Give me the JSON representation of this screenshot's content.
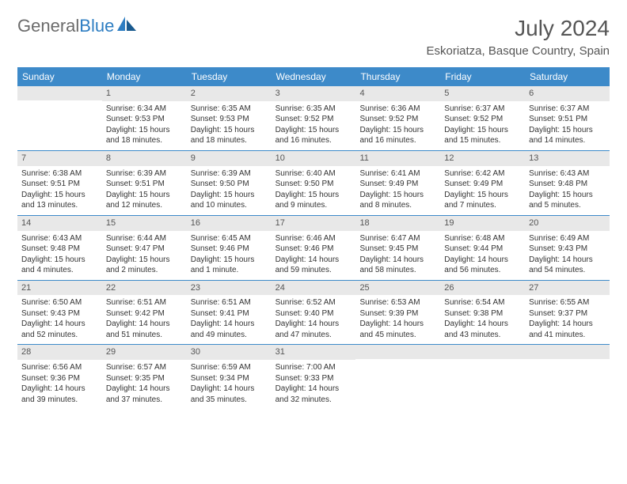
{
  "logo": {
    "part1": "General",
    "part2": "Blue"
  },
  "title": "July 2024",
  "location": "Eskoriatza, Basque Country, Spain",
  "colors": {
    "header_bg": "#3d8ac9",
    "header_text": "#ffffff",
    "daynum_bg": "#e8e8e8",
    "rule": "#3d8ac9",
    "body_text": "#333333",
    "title_text": "#555555",
    "logo_gray": "#6b6b6b",
    "logo_blue": "#2d7dc2",
    "background": "#ffffff"
  },
  "typography": {
    "month_title_fontsize": 28,
    "location_fontsize": 15,
    "dayheader_fontsize": 12,
    "daynum_fontsize": 11,
    "cell_fontsize": 10,
    "logo_fontsize": 22
  },
  "day_names": [
    "Sunday",
    "Monday",
    "Tuesday",
    "Wednesday",
    "Thursday",
    "Friday",
    "Saturday"
  ],
  "weeks": [
    [
      {
        "n": "",
        "sunrise": "",
        "sunset": "",
        "daylight": ""
      },
      {
        "n": "1",
        "sunrise": "Sunrise: 6:34 AM",
        "sunset": "Sunset: 9:53 PM",
        "daylight": "Daylight: 15 hours and 18 minutes."
      },
      {
        "n": "2",
        "sunrise": "Sunrise: 6:35 AM",
        "sunset": "Sunset: 9:53 PM",
        "daylight": "Daylight: 15 hours and 18 minutes."
      },
      {
        "n": "3",
        "sunrise": "Sunrise: 6:35 AM",
        "sunset": "Sunset: 9:52 PM",
        "daylight": "Daylight: 15 hours and 16 minutes."
      },
      {
        "n": "4",
        "sunrise": "Sunrise: 6:36 AM",
        "sunset": "Sunset: 9:52 PM",
        "daylight": "Daylight: 15 hours and 16 minutes."
      },
      {
        "n": "5",
        "sunrise": "Sunrise: 6:37 AM",
        "sunset": "Sunset: 9:52 PM",
        "daylight": "Daylight: 15 hours and 15 minutes."
      },
      {
        "n": "6",
        "sunrise": "Sunrise: 6:37 AM",
        "sunset": "Sunset: 9:51 PM",
        "daylight": "Daylight: 15 hours and 14 minutes."
      }
    ],
    [
      {
        "n": "7",
        "sunrise": "Sunrise: 6:38 AM",
        "sunset": "Sunset: 9:51 PM",
        "daylight": "Daylight: 15 hours and 13 minutes."
      },
      {
        "n": "8",
        "sunrise": "Sunrise: 6:39 AM",
        "sunset": "Sunset: 9:51 PM",
        "daylight": "Daylight: 15 hours and 12 minutes."
      },
      {
        "n": "9",
        "sunrise": "Sunrise: 6:39 AM",
        "sunset": "Sunset: 9:50 PM",
        "daylight": "Daylight: 15 hours and 10 minutes."
      },
      {
        "n": "10",
        "sunrise": "Sunrise: 6:40 AM",
        "sunset": "Sunset: 9:50 PM",
        "daylight": "Daylight: 15 hours and 9 minutes."
      },
      {
        "n": "11",
        "sunrise": "Sunrise: 6:41 AM",
        "sunset": "Sunset: 9:49 PM",
        "daylight": "Daylight: 15 hours and 8 minutes."
      },
      {
        "n": "12",
        "sunrise": "Sunrise: 6:42 AM",
        "sunset": "Sunset: 9:49 PM",
        "daylight": "Daylight: 15 hours and 7 minutes."
      },
      {
        "n": "13",
        "sunrise": "Sunrise: 6:43 AM",
        "sunset": "Sunset: 9:48 PM",
        "daylight": "Daylight: 15 hours and 5 minutes."
      }
    ],
    [
      {
        "n": "14",
        "sunrise": "Sunrise: 6:43 AM",
        "sunset": "Sunset: 9:48 PM",
        "daylight": "Daylight: 15 hours and 4 minutes."
      },
      {
        "n": "15",
        "sunrise": "Sunrise: 6:44 AM",
        "sunset": "Sunset: 9:47 PM",
        "daylight": "Daylight: 15 hours and 2 minutes."
      },
      {
        "n": "16",
        "sunrise": "Sunrise: 6:45 AM",
        "sunset": "Sunset: 9:46 PM",
        "daylight": "Daylight: 15 hours and 1 minute."
      },
      {
        "n": "17",
        "sunrise": "Sunrise: 6:46 AM",
        "sunset": "Sunset: 9:46 PM",
        "daylight": "Daylight: 14 hours and 59 minutes."
      },
      {
        "n": "18",
        "sunrise": "Sunrise: 6:47 AM",
        "sunset": "Sunset: 9:45 PM",
        "daylight": "Daylight: 14 hours and 58 minutes."
      },
      {
        "n": "19",
        "sunrise": "Sunrise: 6:48 AM",
        "sunset": "Sunset: 9:44 PM",
        "daylight": "Daylight: 14 hours and 56 minutes."
      },
      {
        "n": "20",
        "sunrise": "Sunrise: 6:49 AM",
        "sunset": "Sunset: 9:43 PM",
        "daylight": "Daylight: 14 hours and 54 minutes."
      }
    ],
    [
      {
        "n": "21",
        "sunrise": "Sunrise: 6:50 AM",
        "sunset": "Sunset: 9:43 PM",
        "daylight": "Daylight: 14 hours and 52 minutes."
      },
      {
        "n": "22",
        "sunrise": "Sunrise: 6:51 AM",
        "sunset": "Sunset: 9:42 PM",
        "daylight": "Daylight: 14 hours and 51 minutes."
      },
      {
        "n": "23",
        "sunrise": "Sunrise: 6:51 AM",
        "sunset": "Sunset: 9:41 PM",
        "daylight": "Daylight: 14 hours and 49 minutes."
      },
      {
        "n": "24",
        "sunrise": "Sunrise: 6:52 AM",
        "sunset": "Sunset: 9:40 PM",
        "daylight": "Daylight: 14 hours and 47 minutes."
      },
      {
        "n": "25",
        "sunrise": "Sunrise: 6:53 AM",
        "sunset": "Sunset: 9:39 PM",
        "daylight": "Daylight: 14 hours and 45 minutes."
      },
      {
        "n": "26",
        "sunrise": "Sunrise: 6:54 AM",
        "sunset": "Sunset: 9:38 PM",
        "daylight": "Daylight: 14 hours and 43 minutes."
      },
      {
        "n": "27",
        "sunrise": "Sunrise: 6:55 AM",
        "sunset": "Sunset: 9:37 PM",
        "daylight": "Daylight: 14 hours and 41 minutes."
      }
    ],
    [
      {
        "n": "28",
        "sunrise": "Sunrise: 6:56 AM",
        "sunset": "Sunset: 9:36 PM",
        "daylight": "Daylight: 14 hours and 39 minutes."
      },
      {
        "n": "29",
        "sunrise": "Sunrise: 6:57 AM",
        "sunset": "Sunset: 9:35 PM",
        "daylight": "Daylight: 14 hours and 37 minutes."
      },
      {
        "n": "30",
        "sunrise": "Sunrise: 6:59 AM",
        "sunset": "Sunset: 9:34 PM",
        "daylight": "Daylight: 14 hours and 35 minutes."
      },
      {
        "n": "31",
        "sunrise": "Sunrise: 7:00 AM",
        "sunset": "Sunset: 9:33 PM",
        "daylight": "Daylight: 14 hours and 32 minutes."
      },
      {
        "n": "",
        "sunrise": "",
        "sunset": "",
        "daylight": ""
      },
      {
        "n": "",
        "sunrise": "",
        "sunset": "",
        "daylight": ""
      },
      {
        "n": "",
        "sunrise": "",
        "sunset": "",
        "daylight": ""
      }
    ]
  ]
}
